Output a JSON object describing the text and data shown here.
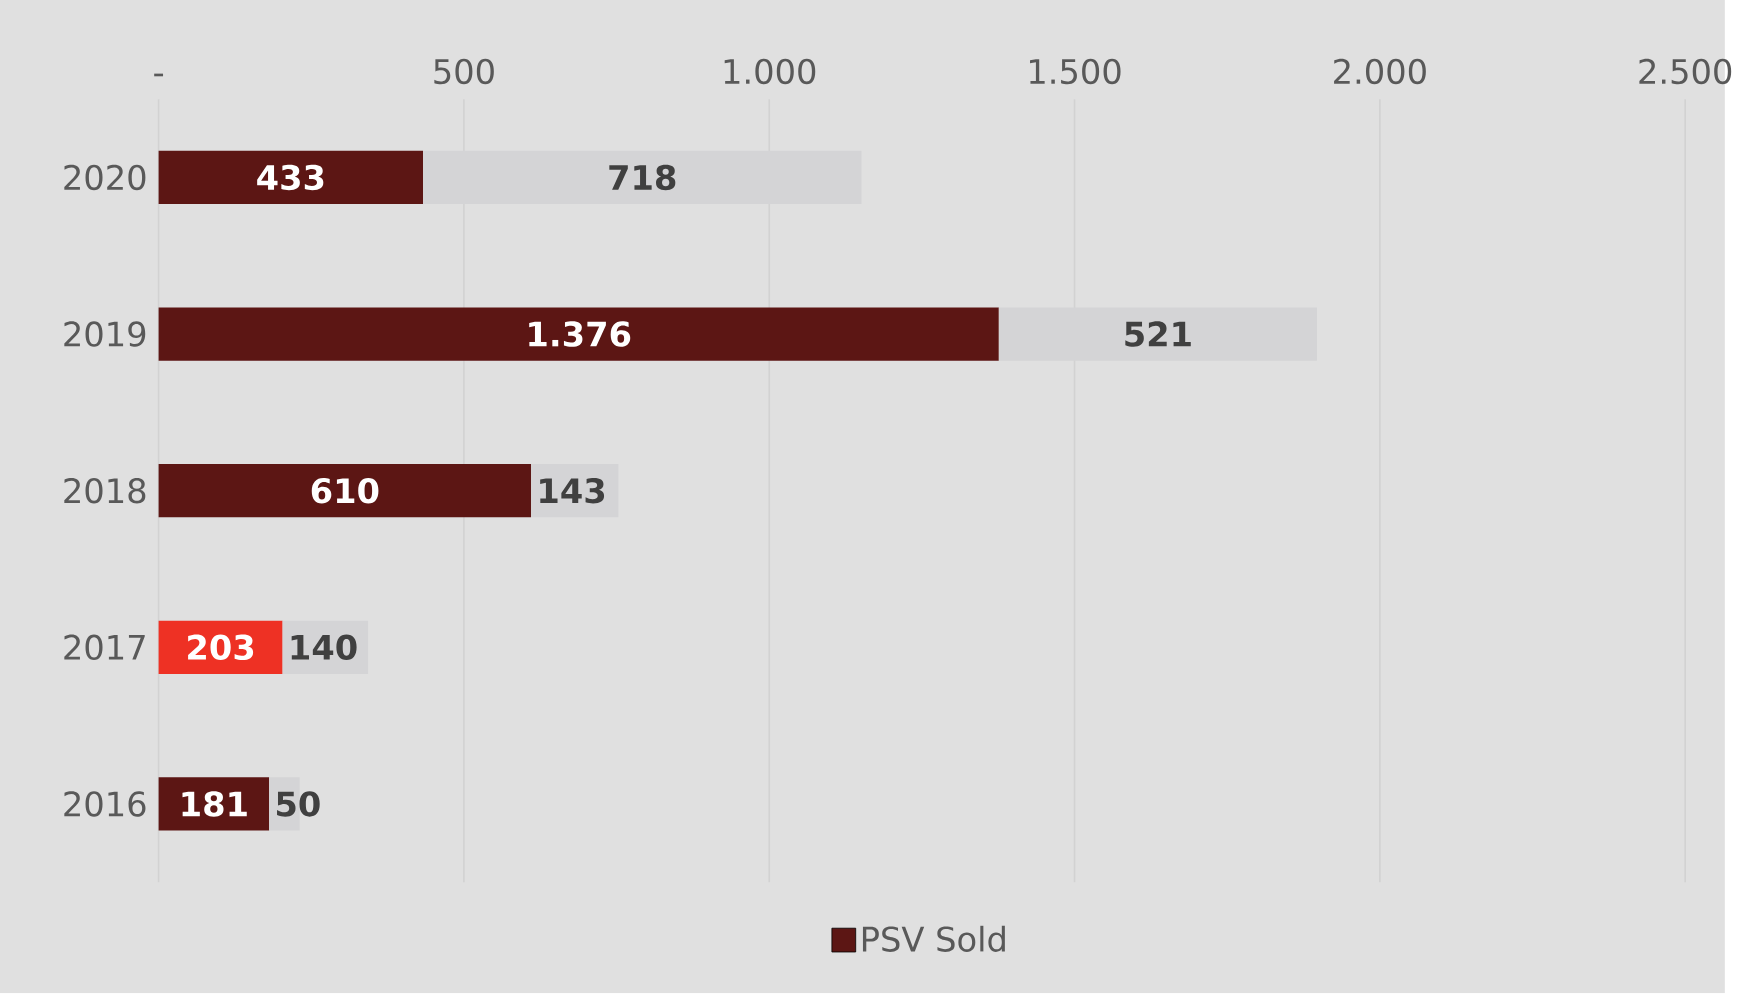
{
  "chart_data": {
    "type": "bar",
    "orientation": "horizontal",
    "stacked": true,
    "categories": [
      "2020",
      "2019",
      "2018",
      "2017",
      "2016"
    ],
    "series": [
      {
        "name": "PSV Sold",
        "color": "#5c1614",
        "colors": [
          "#5c1614",
          "#5c1614",
          "#5c1614",
          "#ee3124",
          "#5c1614"
        ],
        "values": [
          433,
          1376,
          610,
          203,
          181
        ],
        "value_labels": [
          "433",
          "1.376",
          "610",
          "203",
          "181"
        ]
      },
      {
        "color": "#d4d4d6",
        "values": [
          718,
          521,
          143,
          140,
          50
        ],
        "value_labels": [
          "718",
          "521",
          "143",
          "140",
          "50"
        ]
      }
    ],
    "xlim": [
      0,
      2500
    ],
    "xticks": [
      {
        "value": 0,
        "label": "-"
      },
      500,
      {
        "value": 1000,
        "label": "1.000"
      },
      {
        "value": 1500,
        "label": "1.500"
      },
      {
        "value": 2000,
        "label": "2.000"
      },
      {
        "value": 2500,
        "label": "2.500"
      }
    ],
    "grid": "x",
    "legend": "bottom"
  }
}
